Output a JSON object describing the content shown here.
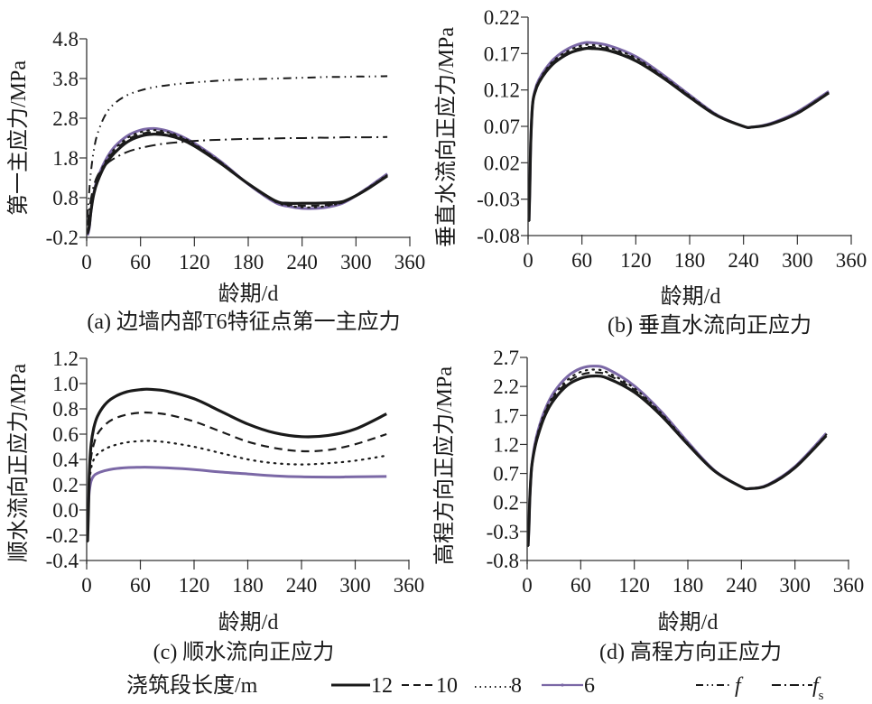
{
  "legend": {
    "title": "浇筑段长度/m",
    "entries": [
      {
        "key": "s12",
        "label": "12",
        "style": "solid",
        "color": "#1a1a1a"
      },
      {
        "key": "s10",
        "label": "10",
        "style": "dashed",
        "color": "#1a1a1a"
      },
      {
        "key": "s8",
        "label": "8",
        "style": "dotted",
        "color": "#1a1a1a"
      },
      {
        "key": "s6",
        "label": "6",
        "style": "solid-marker",
        "color": "#7b68a6"
      },
      {
        "key": "f",
        "label": "f",
        "style": "dash-dot-dot",
        "color": "#1a1a1a"
      },
      {
        "key": "fs",
        "label": "f",
        "subscript": "s",
        "style": "dash-dot",
        "color": "#1a1a1a"
      }
    ]
  },
  "chart_data": [
    {
      "id": "a",
      "type": "line",
      "caption": "(a) 边墙内部T6特征点第一主应力",
      "xlabel": "龄期/d",
      "ylabel": "第一主应力/MPa",
      "xlim": [
        0,
        360
      ],
      "ylim": [
        -0.2,
        4.8
      ],
      "xticks": [
        "0",
        "60",
        "120",
        "180",
        "240",
        "300",
        "360"
      ],
      "yticks": [
        "-0.2",
        "0.8",
        "1.8",
        "2.8",
        "3.8",
        "4.8"
      ],
      "x": [
        1,
        3,
        5,
        8,
        12,
        20,
        30,
        45,
        60,
        75,
        90,
        105,
        120,
        150,
        180,
        210,
        225,
        240,
        255,
        270,
        285,
        300,
        315,
        335
      ],
      "series": [
        {
          "key": "s12",
          "values": [
            -0.1,
            0.1,
            0.5,
            0.9,
            1.2,
            1.6,
            1.9,
            2.2,
            2.35,
            2.4,
            2.37,
            2.27,
            2.1,
            1.65,
            1.15,
            0.72,
            0.66,
            0.66,
            0.66,
            0.67,
            0.7,
            0.85,
            1.05,
            1.35
          ]
        },
        {
          "key": "s10",
          "values": [
            -0.1,
            0.1,
            0.5,
            0.9,
            1.22,
            1.63,
            1.95,
            2.25,
            2.4,
            2.45,
            2.42,
            2.3,
            2.13,
            1.68,
            1.15,
            0.72,
            0.62,
            0.6,
            0.6,
            0.62,
            0.68,
            0.85,
            1.05,
            1.37
          ]
        },
        {
          "key": "s8",
          "values": [
            -0.1,
            0.1,
            0.52,
            0.92,
            1.25,
            1.67,
            2.0,
            2.3,
            2.45,
            2.5,
            2.45,
            2.33,
            2.15,
            1.68,
            1.14,
            0.7,
            0.6,
            0.56,
            0.56,
            0.6,
            0.68,
            0.86,
            1.07,
            1.38
          ]
        },
        {
          "key": "s6",
          "values": [
            -0.15,
            0.05,
            0.5,
            0.92,
            1.27,
            1.7,
            2.05,
            2.35,
            2.5,
            2.54,
            2.48,
            2.35,
            2.17,
            1.7,
            1.14,
            0.68,
            0.58,
            0.53,
            0.53,
            0.57,
            0.66,
            0.85,
            1.08,
            1.4
          ]
        },
        {
          "key": "f",
          "values": [
            0.3,
            1.0,
            1.5,
            2.0,
            2.4,
            2.85,
            3.15,
            3.38,
            3.5,
            3.58,
            3.63,
            3.67,
            3.7,
            3.75,
            3.78,
            3.8,
            3.81,
            3.82,
            3.83,
            3.84,
            3.84,
            3.85,
            3.85,
            3.86
          ]
        },
        {
          "key": "fs",
          "values": [
            0.1,
            0.5,
            0.8,
            1.1,
            1.35,
            1.6,
            1.78,
            1.95,
            2.05,
            2.12,
            2.17,
            2.2,
            2.23,
            2.26,
            2.28,
            2.29,
            2.3,
            2.3,
            2.31,
            2.31,
            2.32,
            2.32,
            2.32,
            2.33
          ]
        }
      ]
    },
    {
      "id": "b",
      "type": "line",
      "caption": "(b) 垂直水流向正应力",
      "xlabel": "龄期/d",
      "ylabel": "垂直水流向正应力/MPa",
      "xlim": [
        0,
        360
      ],
      "ylim": [
        -0.08,
        0.22
      ],
      "xticks": [
        "0",
        "60",
        "120",
        "180",
        "240",
        "300",
        "360"
      ],
      "yticks": [
        "-0.08",
        "-0.03",
        "0.02",
        "0.07",
        "0.12",
        "0.17",
        "0.22"
      ],
      "x": [
        1,
        2,
        3,
        5,
        8,
        12,
        20,
        30,
        45,
        60,
        70,
        90,
        120,
        150,
        180,
        210,
        240,
        250,
        270,
        300,
        335
      ],
      "series": [
        {
          "key": "s12",
          "values": [
            -0.06,
            -0.01,
            0.05,
            0.1,
            0.118,
            0.13,
            0.145,
            0.158,
            0.17,
            0.176,
            0.177,
            0.174,
            0.16,
            0.137,
            0.11,
            0.085,
            0.07,
            0.069,
            0.073,
            0.088,
            0.116
          ]
        },
        {
          "key": "s10",
          "values": [
            -0.06,
            -0.01,
            0.05,
            0.1,
            0.119,
            0.131,
            0.147,
            0.16,
            0.172,
            0.178,
            0.179,
            0.176,
            0.162,
            0.138,
            0.111,
            0.085,
            0.07,
            0.069,
            0.073,
            0.088,
            0.116
          ]
        },
        {
          "key": "s8",
          "values": [
            -0.06,
            -0.01,
            0.05,
            0.1,
            0.12,
            0.132,
            0.148,
            0.162,
            0.174,
            0.181,
            0.182,
            0.178,
            0.164,
            0.139,
            0.112,
            0.086,
            0.07,
            0.069,
            0.073,
            0.089,
            0.117
          ]
        },
        {
          "key": "s6",
          "values": [
            -0.06,
            -0.01,
            0.05,
            0.1,
            0.121,
            0.134,
            0.15,
            0.164,
            0.177,
            0.184,
            0.185,
            0.181,
            0.166,
            0.141,
            0.113,
            0.086,
            0.07,
            0.069,
            0.074,
            0.09,
            0.118
          ]
        }
      ]
    },
    {
      "id": "c",
      "type": "line",
      "caption": "(c) 顺水流向正应力",
      "xlabel": "龄期/d",
      "ylabel": "顺水流向正应力/MPa",
      "xlim": [
        0,
        360
      ],
      "ylim": [
        -0.4,
        1.2
      ],
      "xticks": [
        "0",
        "60",
        "120",
        "180",
        "240",
        "300",
        "360"
      ],
      "yticks": [
        "-0.4",
        "-0.2",
        "0.0",
        "0.2",
        "0.4",
        "0.6",
        "0.8",
        "1.0",
        "1.2"
      ],
      "x": [
        1,
        2,
        3,
        5,
        8,
        12,
        20,
        30,
        45,
        60,
        70,
        90,
        120,
        150,
        180,
        210,
        240,
        270,
        300,
        335
      ],
      "series": [
        {
          "key": "s12",
          "values": [
            -0.25,
            0.0,
            0.3,
            0.52,
            0.65,
            0.74,
            0.83,
            0.89,
            0.935,
            0.952,
            0.955,
            0.94,
            0.88,
            0.78,
            0.68,
            0.61,
            0.58,
            0.59,
            0.64,
            0.76
          ]
        },
        {
          "key": "s10",
          "values": [
            -0.25,
            0.0,
            0.25,
            0.42,
            0.52,
            0.6,
            0.67,
            0.72,
            0.755,
            0.77,
            0.77,
            0.755,
            0.7,
            0.62,
            0.54,
            0.49,
            0.465,
            0.475,
            0.52,
            0.6
          ]
        },
        {
          "key": "s8",
          "values": [
            -0.25,
            0.0,
            0.2,
            0.33,
            0.4,
            0.44,
            0.48,
            0.51,
            0.535,
            0.545,
            0.547,
            0.535,
            0.5,
            0.45,
            0.4,
            0.37,
            0.36,
            0.37,
            0.39,
            0.43
          ]
        },
        {
          "key": "s6",
          "values": [
            -0.05,
            0.05,
            0.15,
            0.23,
            0.27,
            0.29,
            0.31,
            0.325,
            0.335,
            0.338,
            0.338,
            0.333,
            0.32,
            0.3,
            0.285,
            0.27,
            0.262,
            0.26,
            0.262,
            0.265
          ]
        }
      ]
    },
    {
      "id": "d",
      "type": "line",
      "caption": "(d) 高程方向正应力",
      "xlabel": "龄期/d",
      "ylabel": "高程方向正应力/MPa",
      "xlim": [
        0,
        360
      ],
      "ylim": [
        -0.8,
        2.7
      ],
      "xticks": [
        "0",
        "60",
        "120",
        "180",
        "240",
        "300",
        "360"
      ],
      "yticks": [
        "-0.8",
        "-0.3",
        "0.2",
        "0.7",
        "1.2",
        "1.7",
        "2.2",
        "2.7"
      ],
      "x": [
        1,
        2,
        3,
        5,
        8,
        12,
        20,
        30,
        45,
        60,
        75,
        90,
        120,
        150,
        180,
        210,
        240,
        250,
        270,
        300,
        335
      ],
      "series": [
        {
          "key": "s12",
          "values": [
            -0.55,
            -0.2,
            0.3,
            0.8,
            1.1,
            1.35,
            1.7,
            1.97,
            2.22,
            2.34,
            2.38,
            2.34,
            2.1,
            1.7,
            1.2,
            0.74,
            0.47,
            0.44,
            0.5,
            0.8,
            1.35
          ]
        },
        {
          "key": "s10",
          "values": [
            -0.55,
            -0.2,
            0.3,
            0.8,
            1.12,
            1.38,
            1.74,
            2.02,
            2.27,
            2.4,
            2.44,
            2.4,
            2.14,
            1.72,
            1.21,
            0.74,
            0.47,
            0.44,
            0.5,
            0.8,
            1.36
          ]
        },
        {
          "key": "s8",
          "values": [
            -0.55,
            -0.2,
            0.3,
            0.8,
            1.13,
            1.4,
            1.77,
            2.05,
            2.31,
            2.45,
            2.49,
            2.44,
            2.17,
            1.74,
            1.22,
            0.74,
            0.47,
            0.44,
            0.5,
            0.81,
            1.37
          ]
        },
        {
          "key": "s6",
          "values": [
            -0.55,
            -0.2,
            0.3,
            0.8,
            1.15,
            1.43,
            1.8,
            2.1,
            2.37,
            2.51,
            2.55,
            2.5,
            2.21,
            1.77,
            1.24,
            0.75,
            0.47,
            0.44,
            0.51,
            0.82,
            1.39
          ]
        }
      ]
    }
  ]
}
